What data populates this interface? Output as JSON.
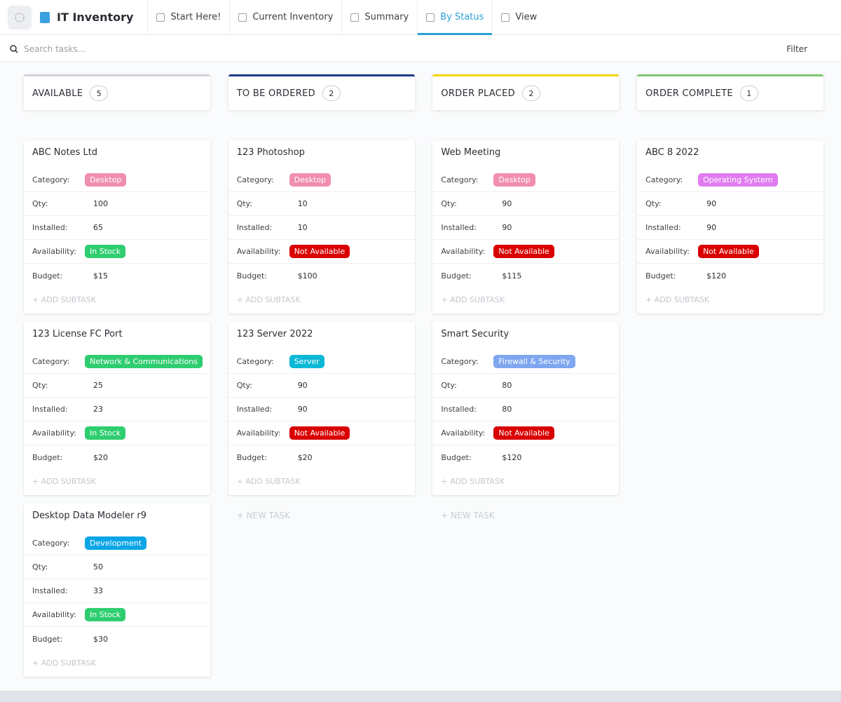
{
  "header": {
    "title": "IT Inventory",
    "tabs": [
      {
        "label": "Start Here!",
        "active": false
      },
      {
        "label": "Current Inventory",
        "active": false
      },
      {
        "label": "Summary",
        "active": false
      },
      {
        "label": "By Status",
        "active": true
      },
      {
        "label": "View",
        "active": false
      }
    ]
  },
  "toolbar": {
    "search_placeholder": "Search tasks...",
    "filter": "Filter"
  },
  "board": {
    "field_labels": [
      "Category:",
      "Qty:",
      "Installed:",
      "Availability:",
      "Budget:"
    ],
    "add_subtask": "+ ADD SUBTASK",
    "new_task": "+ NEW TASK",
    "columns": [
      {
        "name": "AVAILABLE",
        "count": 5,
        "color": "#d0d3d8",
        "show_new_task": false,
        "cards": [
          {
            "title": "ABC Notes Ltd",
            "category": {
              "label": "Desktop",
              "color": "#f08db0"
            },
            "qty": 100,
            "installed": 65,
            "availability": {
              "label": "In Stock",
              "color": "#2ecd6f"
            },
            "budget": "$15"
          },
          {
            "title": "123 License FC Port",
            "category": {
              "label": "Network & Communications",
              "color": "#2ecd6f"
            },
            "qty": 25,
            "installed": 23,
            "availability": {
              "label": "In Stock",
              "color": "#2ecd6f"
            },
            "budget": "$20"
          },
          {
            "title": "Desktop Data Modeler r9",
            "category": {
              "label": "Development",
              "color": "#0aa5e6"
            },
            "qty": 50,
            "installed": 33,
            "availability": {
              "label": "In Stock",
              "color": "#2ecd6f"
            },
            "budget": "$30"
          }
        ]
      },
      {
        "name": "TO BE ORDERED",
        "count": 2,
        "color": "#1f3a8a",
        "show_new_task": true,
        "cards": [
          {
            "title": "123 Photoshop",
            "category": {
              "label": "Desktop",
              "color": "#f08db0"
            },
            "qty": 10,
            "installed": 10,
            "availability": {
              "label": "Not Available",
              "color": "#d90000"
            },
            "budget": "$100"
          },
          {
            "title": "123 Server 2022",
            "category": {
              "label": "Server",
              "color": "#0bb8d6"
            },
            "qty": 90,
            "installed": 90,
            "availability": {
              "label": "Not Available",
              "color": "#d90000"
            },
            "budget": "$20"
          }
        ]
      },
      {
        "name": "ORDER PLACED",
        "count": 2,
        "color": "#f2d600",
        "show_new_task": true,
        "cards": [
          {
            "title": "Web Meeting",
            "category": {
              "label": "Desktop",
              "color": "#f08db0"
            },
            "qty": 90,
            "installed": 90,
            "availability": {
              "label": "Not Available",
              "color": "#d90000"
            },
            "budget": "$115"
          },
          {
            "title": "Smart Security",
            "category": {
              "label": "Firewall & Security",
              "color": "#7fa6f0"
            },
            "qty": 80,
            "installed": 80,
            "availability": {
              "label": "Not Available",
              "color": "#d90000"
            },
            "budget": "$120"
          }
        ]
      },
      {
        "name": "ORDER COMPLETE",
        "count": 1,
        "color": "#7bc96f",
        "show_new_task": false,
        "cards": [
          {
            "title": "ABC 8 2022",
            "category": {
              "label": "Operating System",
              "color": "#e07cf0"
            },
            "qty": 90,
            "installed": 90,
            "availability": {
              "label": "Not Available",
              "color": "#d90000"
            },
            "budget": "$120"
          }
        ]
      }
    ]
  }
}
